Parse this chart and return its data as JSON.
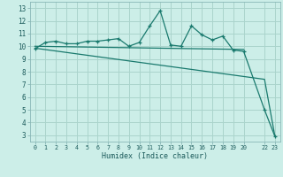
{
  "xlabel": "Humidex (Indice chaleur)",
  "background_color": "#cceee8",
  "grid_color": "#aad4cc",
  "line_color": "#1a7a6e",
  "xlim": [
    -0.5,
    23.5
  ],
  "ylim": [
    2.5,
    13.5
  ],
  "xtick_positions": [
    0,
    1,
    2,
    3,
    4,
    5,
    6,
    7,
    8,
    9,
    10,
    11,
    12,
    13,
    14,
    15,
    16,
    17,
    18,
    19,
    20,
    22,
    23
  ],
  "xtick_labels": [
    "0",
    "1",
    "2",
    "3",
    "4",
    "5",
    "6",
    "7",
    "8",
    "9",
    "10",
    "11",
    "12",
    "13",
    "14",
    "15",
    "16",
    "17",
    "18",
    "19",
    "20",
    "22",
    "23"
  ],
  "ytick_values": [
    3,
    4,
    5,
    6,
    7,
    8,
    9,
    10,
    11,
    12,
    13
  ],
  "series1_x": [
    0,
    1,
    2,
    3,
    4,
    5,
    6,
    7,
    8,
    9,
    10,
    11,
    12,
    13,
    14,
    15,
    16,
    17,
    18,
    19,
    20,
    22,
    23
  ],
  "series1_y": [
    9.8,
    10.3,
    10.4,
    10.2,
    10.2,
    10.4,
    10.4,
    10.5,
    10.6,
    10.0,
    10.3,
    11.6,
    12.8,
    10.1,
    10.0,
    11.6,
    10.9,
    10.5,
    10.8,
    9.7,
    9.6,
    5.0,
    2.9
  ],
  "series2_x": [
    0,
    20
  ],
  "series2_y": [
    10.0,
    9.75
  ],
  "series3_x": [
    0,
    22,
    23
  ],
  "series3_y": [
    9.85,
    7.4,
    2.9
  ]
}
